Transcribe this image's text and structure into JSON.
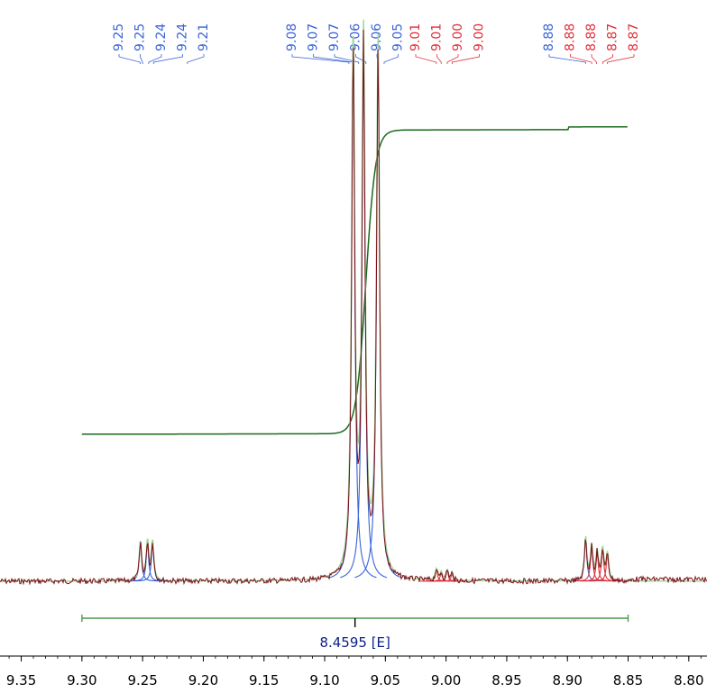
{
  "chart_data": {
    "type": "line",
    "title": "",
    "xlabel": "",
    "ylabel": "",
    "x_axis": {
      "reversed": true,
      "range": [
        9.3675,
        8.785
      ],
      "ticks": [
        "9.35",
        "9.30",
        "9.25",
        "9.20",
        "9.15",
        "9.10",
        "9.05",
        "9.00",
        "8.95",
        "8.90",
        "8.85",
        "8.80"
      ]
    },
    "peak_labels": [
      {
        "text": "9.25",
        "ppm": 9.252,
        "color": "#3a64d8"
      },
      {
        "text": "9.25",
        "ppm": 9.25,
        "color": "#3a64d8"
      },
      {
        "text": "9.24",
        "ppm": 9.245,
        "color": "#3a64d8"
      },
      {
        "text": "9.24",
        "ppm": 9.241,
        "color": "#3a64d8"
      },
      {
        "text": "9.21",
        "ppm": 9.213,
        "color": "#3a64d8"
      },
      {
        "text": "9.08",
        "ppm": 9.08,
        "color": "#3a64d8"
      },
      {
        "text": "9.07",
        "ppm": 9.077,
        "color": "#3a64d8"
      },
      {
        "text": "9.07",
        "ppm": 9.072,
        "color": "#3a64d8"
      },
      {
        "text": "9.06",
        "ppm": 9.066,
        "color": "#3a64d8"
      },
      {
        "text": "9.06",
        "ppm": 9.056,
        "color": "#3a64d8"
      },
      {
        "text": "9.05",
        "ppm": 9.051,
        "color": "#3a64d8"
      },
      {
        "text": "9.01",
        "ppm": 9.008,
        "color": "#e0303a"
      },
      {
        "text": "9.01",
        "ppm": 9.004,
        "color": "#e0303a"
      },
      {
        "text": "9.00",
        "ppm": 8.999,
        "color": "#e0303a"
      },
      {
        "text": "9.00",
        "ppm": 8.995,
        "color": "#e0303a"
      },
      {
        "text": "8.88",
        "ppm": 8.885,
        "color": "#3a64d8"
      },
      {
        "text": "8.88",
        "ppm": 8.88,
        "color": "#e0303a"
      },
      {
        "text": "8.88",
        "ppm": 8.876,
        "color": "#e0303a"
      },
      {
        "text": "8.87",
        "ppm": 8.871,
        "color": "#e0303a"
      },
      {
        "text": "8.87",
        "ppm": 8.867,
        "color": "#e0303a"
      }
    ],
    "peaks": [
      {
        "ppm": 9.2518,
        "height": 0.098,
        "width": 0.0012,
        "group": "blue"
      },
      {
        "ppm": 9.246,
        "height": 0.098,
        "width": 0.0012,
        "group": "blue"
      },
      {
        "ppm": 9.2418,
        "height": 0.098,
        "width": 0.0012,
        "group": "blue"
      },
      {
        "ppm": 9.0765,
        "height": 1.35,
        "width": 0.0016,
        "group": "blue"
      },
      {
        "ppm": 9.068,
        "height": 1.35,
        "width": 0.0016,
        "group": "blue"
      },
      {
        "ppm": 9.056,
        "height": 1.35,
        "width": 0.0016,
        "group": "blue"
      },
      {
        "ppm": 9.008,
        "height": 0.028,
        "width": 0.0011,
        "group": "red"
      },
      {
        "ppm": 9.004,
        "height": 0.02,
        "width": 0.0011,
        "group": "red"
      },
      {
        "ppm": 8.999,
        "height": 0.026,
        "width": 0.0011,
        "group": "red"
      },
      {
        "ppm": 8.995,
        "height": 0.018,
        "width": 0.0011,
        "group": "red"
      },
      {
        "ppm": 8.885,
        "height": 0.108,
        "width": 0.0012,
        "group": "blue"
      },
      {
        "ppm": 8.88,
        "height": 0.085,
        "width": 0.0012,
        "group": "red"
      },
      {
        "ppm": 8.8755,
        "height": 0.07,
        "width": 0.0012,
        "group": "red"
      },
      {
        "ppm": 8.871,
        "height": 0.078,
        "width": 0.0012,
        "group": "red"
      },
      {
        "ppm": 8.867,
        "height": 0.068,
        "width": 0.0012,
        "group": "red"
      }
    ],
    "integral": {
      "from_ppm": 9.3,
      "to_ppm": 8.85,
      "value": "8.4595 [E]",
      "start_level": 0.42,
      "end_level": 1.0
    },
    "colors": {
      "spectrum": "#7a0f16",
      "fit_sum": "#9fd39a",
      "blue_fit": "#3a64d8",
      "red_fit": "#e0303a",
      "integral_curve": "#1a6b1a",
      "integral_bracket": "#4f9a4f",
      "integral_label": "#0a1f8a",
      "axis": "#000000"
    },
    "grid": false,
    "legend": "none"
  }
}
